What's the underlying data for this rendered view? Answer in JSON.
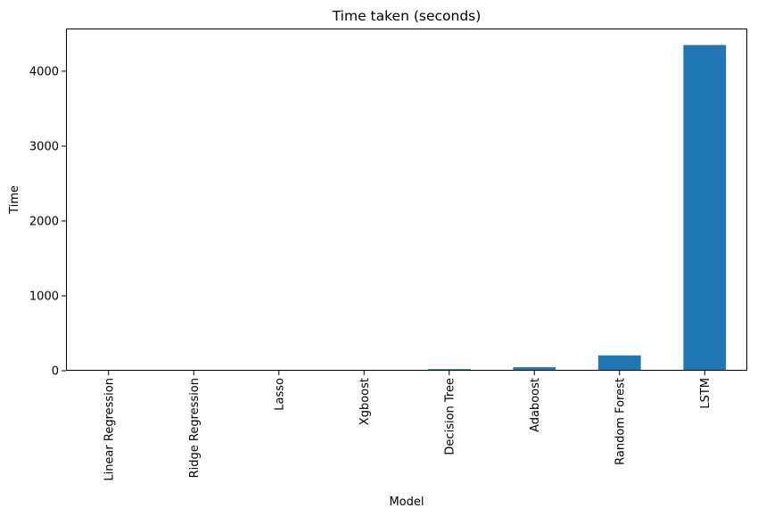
{
  "chart_data": {
    "type": "bar",
    "title": "Time taken (seconds)",
    "xlabel": "Model",
    "ylabel": "Time",
    "categories": [
      "Linear Regression",
      "Ridge Regression",
      "Lasso",
      "Xgboost",
      "Decision Tree",
      "Adaboost",
      "Random Forest",
      "LSTM"
    ],
    "values": [
      0.5,
      0.5,
      0.5,
      1,
      22,
      47,
      205,
      4350
    ],
    "ylim": [
      0,
      4570
    ],
    "yticks": [
      0,
      1000,
      2000,
      3000,
      4000
    ],
    "ytick_labels": [
      "0",
      "1000",
      "2000",
      "3000",
      "4000"
    ],
    "grid": false,
    "legend": "none",
    "bar_color": "#1f77b4",
    "x_tick_rotation": "vertical"
  }
}
